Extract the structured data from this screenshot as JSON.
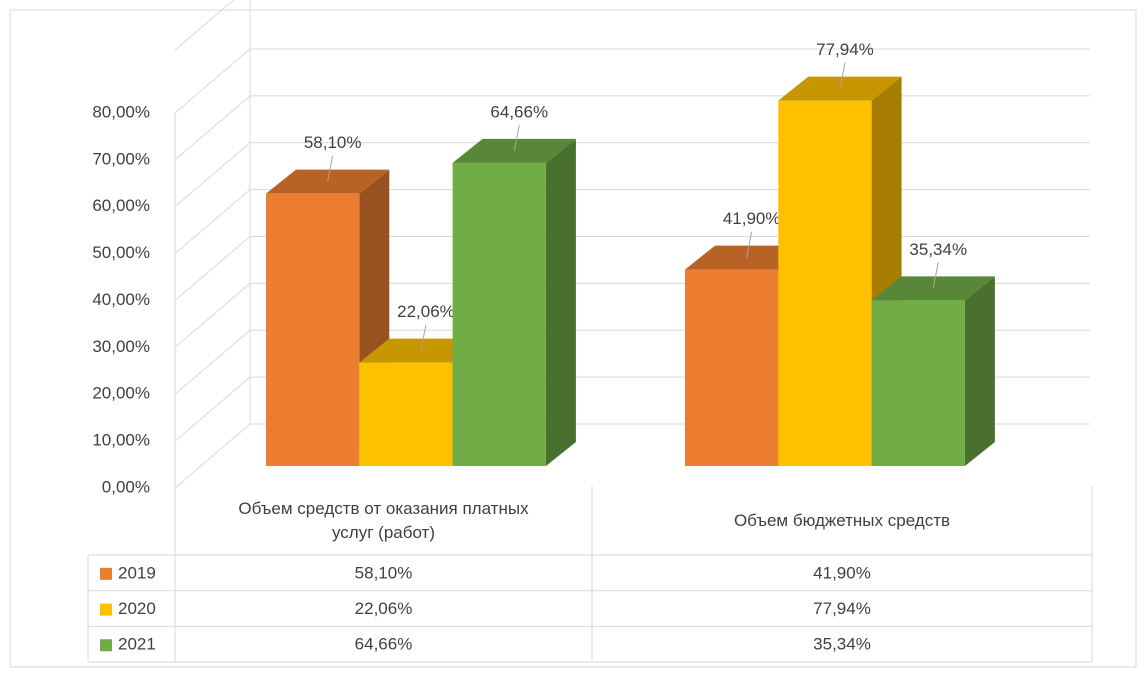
{
  "chart_data": {
    "type": "bar3d",
    "categories": [
      "Объем средств от оказания платных услуг (работ)",
      "Объем бюджетных средств"
    ],
    "series": [
      {
        "name": "2019",
        "color": "#ed7d31",
        "values": [
          58.1,
          41.9
        ],
        "value_labels": [
          "58,10%",
          "41,90%"
        ]
      },
      {
        "name": "2020",
        "color": "#ffc000",
        "values": [
          22.06,
          77.94
        ],
        "value_labels": [
          "22,06%",
          "77,94%"
        ]
      },
      {
        "name": "2021",
        "color": "#70ad47",
        "values": [
          64.66,
          35.34
        ],
        "value_labels": [
          "64,66%",
          "35,34%"
        ]
      }
    ],
    "ylim": [
      0,
      80
    ],
    "yticks": [
      {
        "value": 0,
        "label": "0,00%"
      },
      {
        "value": 10,
        "label": "10,00%"
      },
      {
        "value": 20,
        "label": "20,00%"
      },
      {
        "value": 30,
        "label": "30,00%"
      },
      {
        "value": 40,
        "label": "40,00%"
      },
      {
        "value": 50,
        "label": "50,00%"
      },
      {
        "value": 60,
        "label": "60,00%"
      },
      {
        "value": 70,
        "label": "70,00%"
      },
      {
        "value": 80,
        "label": "80,00%"
      }
    ],
    "grid": true,
    "legend": "table"
  }
}
